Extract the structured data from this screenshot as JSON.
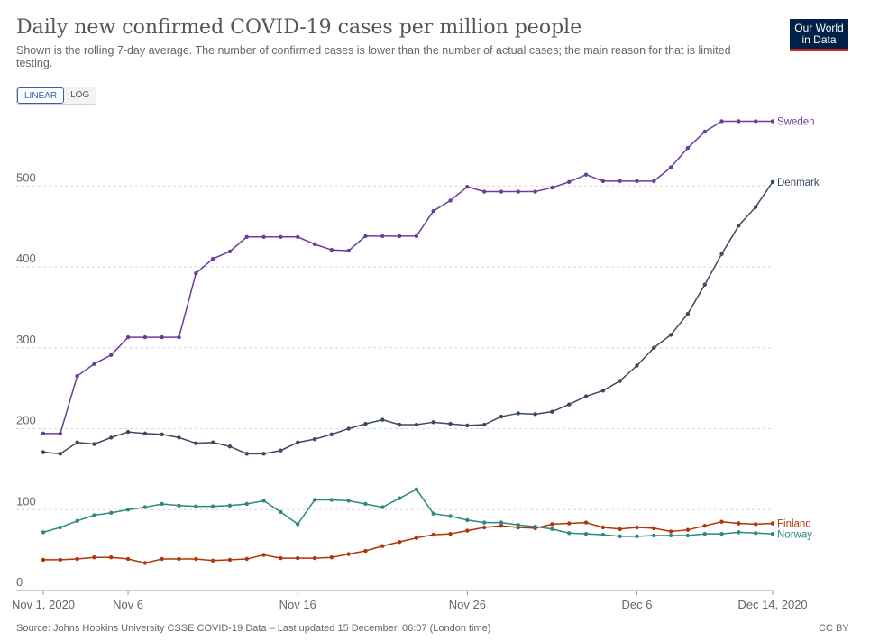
{
  "header": {
    "title": "Daily new confirmed COVID-19 cases per million people",
    "subtitle": "Shown is the rolling 7-day average. The number of confirmed cases is lower than the number of actual cases; the main reason for that is limited testing.",
    "logo_line1": "Our World",
    "logo_line2": "in Data"
  },
  "scale_toggle": {
    "linear_label": "LINEAR",
    "log_label": "LOG",
    "selected": "LINEAR"
  },
  "footer": {
    "source": "Source: Johns Hopkins University CSSE COVID-19 Data – Last updated 15 December, 06:07 (London time)",
    "license": "CC BY"
  },
  "colors": {
    "Sweden": "#6a3d9a",
    "Denmark": "#3a4a5f",
    "Finland": "#b13507",
    "Norway": "#2a8a80"
  },
  "chart_data": {
    "type": "line",
    "title": "Daily new confirmed COVID-19 cases per million people",
    "x_tick_labels": [
      "Nov 1, 2020",
      "Nov 6",
      "Nov 16",
      "Nov 26",
      "Dec 6",
      "Dec 14, 2020"
    ],
    "x_tick_days": [
      0,
      5,
      15,
      25,
      35,
      43
    ],
    "y_ticks": [
      0,
      100,
      200,
      300,
      400,
      500
    ],
    "ylim": [
      0,
      585
    ],
    "grid": true,
    "x": [
      "Nov 1",
      "Nov 2",
      "Nov 3",
      "Nov 4",
      "Nov 5",
      "Nov 6",
      "Nov 7",
      "Nov 8",
      "Nov 9",
      "Nov 10",
      "Nov 11",
      "Nov 12",
      "Nov 13",
      "Nov 14",
      "Nov 15",
      "Nov 16",
      "Nov 17",
      "Nov 18",
      "Nov 19",
      "Nov 20",
      "Nov 21",
      "Nov 22",
      "Nov 23",
      "Nov 24",
      "Nov 25",
      "Nov 26",
      "Nov 27",
      "Nov 28",
      "Nov 29",
      "Nov 30",
      "Dec 1",
      "Dec 2",
      "Dec 3",
      "Dec 4",
      "Dec 5",
      "Dec 6",
      "Dec 7",
      "Dec 8",
      "Dec 9",
      "Dec 10",
      "Dec 11",
      "Dec 12",
      "Dec 13",
      "Dec 14"
    ],
    "series": [
      {
        "name": "Sweden",
        "values": [
          194,
          194,
          265,
          280,
          291,
          313,
          313,
          313,
          313,
          392,
          410,
          419,
          437,
          437,
          437,
          437,
          428,
          421,
          420,
          438,
          438,
          438,
          438,
          469,
          482,
          499,
          493,
          493,
          493,
          493,
          498,
          505,
          514,
          506,
          506,
          506,
          506,
          523,
          547,
          567,
          580,
          580,
          580,
          580
        ]
      },
      {
        "name": "Denmark",
        "values": [
          171,
          169,
          183,
          181,
          189,
          196,
          194,
          193,
          189,
          182,
          183,
          178,
          169,
          169,
          173,
          183,
          187,
          193,
          200,
          206,
          211,
          205,
          205,
          208,
          206,
          204,
          205,
          215,
          219,
          218,
          221,
          230,
          240,
          247,
          259,
          278,
          300,
          316,
          342,
          378,
          416,
          451,
          474,
          505
        ]
      },
      {
        "name": "Finland",
        "values": [
          38,
          38,
          39,
          41,
          41,
          39,
          34,
          39,
          39,
          39,
          37,
          38,
          39,
          44,
          40,
          40,
          40,
          41,
          45,
          49,
          55,
          60,
          65,
          69,
          70,
          74,
          78,
          80,
          78,
          77,
          82,
          83,
          84,
          78,
          76,
          78,
          77,
          73,
          75,
          80,
          85,
          83,
          82,
          83
        ]
      },
      {
        "name": "Norway",
        "values": [
          72,
          78,
          86,
          93,
          96,
          100,
          103,
          107,
          105,
          104,
          104,
          105,
          107,
          111,
          97,
          82,
          112,
          112,
          111,
          107,
          103,
          114,
          125,
          95,
          92,
          87,
          84,
          84,
          81,
          79,
          76,
          71,
          70,
          69,
          67,
          67,
          68,
          68,
          68,
          70,
          70,
          72,
          71,
          70
        ]
      }
    ]
  }
}
